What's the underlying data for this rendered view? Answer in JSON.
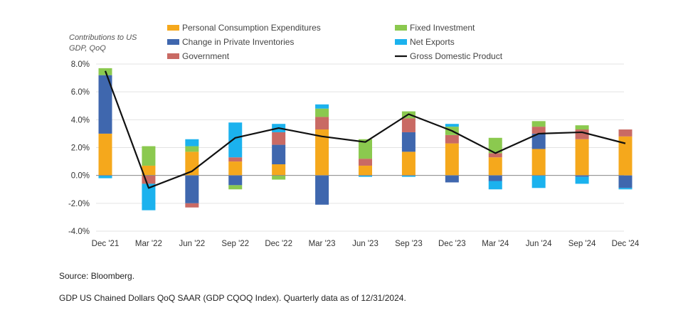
{
  "chart_data": {
    "type": "bar",
    "stacked": true,
    "ylabel": "Contributions to US\nGDP, QoQ",
    "yticks": [
      "8.0%",
      "6.0%",
      "4.0%",
      "2.0%",
      "0.0%",
      "-2.0%",
      "-4.0%"
    ],
    "ylim": [
      -4,
      8
    ],
    "grid": true,
    "legend_position": "top",
    "categories": [
      "Dec '21",
      "Mar '22",
      "Jun '22",
      "Sep '22",
      "Dec '22",
      "Mar '23",
      "Jun '23",
      "Sep '23",
      "Dec '23",
      "Mar '24",
      "Jun '24",
      "Sep '24",
      "Dec '24"
    ],
    "series": [
      {
        "name": "Personal Consumption Expenditures",
        "color": "#F5A81C",
        "kind": "bar",
        "values": [
          3.0,
          0.7,
          1.7,
          1.0,
          0.8,
          3.3,
          0.7,
          1.7,
          2.3,
          1.3,
          1.9,
          2.6,
          2.8
        ]
      },
      {
        "name": "Change in Private Inventories",
        "color": "#3F67AE",
        "kind": "bar",
        "values": [
          4.2,
          0.0,
          -2.0,
          -0.7,
          1.4,
          -2.1,
          0.0,
          1.4,
          -0.5,
          -0.4,
          1.1,
          -0.1,
          -0.9
        ]
      },
      {
        "name": "Government",
        "color": "#C96A64",
        "kind": "bar",
        "values": [
          0.0,
          -0.6,
          -0.3,
          0.3,
          0.9,
          0.9,
          0.5,
          1.0,
          0.6,
          0.3,
          0.5,
          0.7,
          0.5
        ]
      },
      {
        "name": "Fixed Investment",
        "color": "#8BC94F",
        "kind": "bar",
        "values": [
          0.5,
          1.4,
          0.4,
          -0.3,
          -0.3,
          0.6,
          1.4,
          0.5,
          0.6,
          1.1,
          0.4,
          0.3,
          0.0
        ]
      },
      {
        "name": "Net Exports",
        "color": "#1BB2EE",
        "kind": "bar",
        "values": [
          -0.2,
          -1.9,
          0.5,
          2.5,
          0.6,
          0.3,
          -0.1,
          -0.1,
          0.2,
          -0.6,
          -0.9,
          -0.5,
          -0.1
        ]
      },
      {
        "name": "Gross Domestic Product",
        "color": "#111111",
        "kind": "line",
        "values": [
          7.5,
          -0.9,
          0.3,
          2.7,
          3.4,
          2.8,
          2.4,
          4.4,
          3.2,
          1.6,
          3.0,
          3.1,
          2.3
        ]
      }
    ]
  },
  "notes": {
    "source": "Source: Bloomberg.",
    "footnote": "GDP US Chained Dollars QoQ SAAR (GDP CQOQ Index). Quarterly data as of 12/31/2024."
  }
}
